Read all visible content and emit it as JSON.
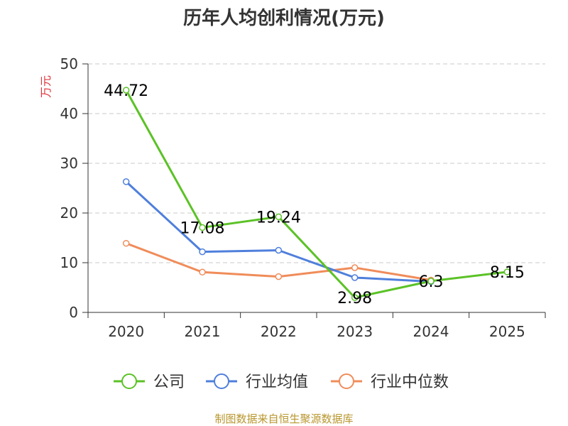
{
  "chart_data": {
    "type": "line",
    "title": "历年人均创利情况(万元)",
    "ylabel": "万元",
    "xlabel": "",
    "categories": [
      "2020",
      "2021",
      "2022",
      "2023",
      "2024",
      "2025"
    ],
    "ylim": [
      0,
      50
    ],
    "yticks": [
      0,
      10,
      20,
      30,
      40,
      50
    ],
    "grid": true,
    "legend_position": "bottom",
    "series": [
      {
        "name": "公司",
        "color": "#5bc226",
        "values": [
          44.72,
          17.08,
          19.24,
          2.98,
          6.3,
          8.15
        ],
        "labels": [
          "44.72",
          "17.08",
          "19.24",
          "2.98",
          "6.3",
          "8.15"
        ]
      },
      {
        "name": "行业均值",
        "color": "#4f7fdc",
        "values": [
          26.3,
          12.2,
          12.5,
          7.0,
          6.2,
          null
        ]
      },
      {
        "name": "行业中位数",
        "color": "#f08c5a",
        "values": [
          13.9,
          8.1,
          7.2,
          9.0,
          6.5,
          null
        ]
      }
    ],
    "source": "制图数据来自恒生聚源数据库"
  }
}
